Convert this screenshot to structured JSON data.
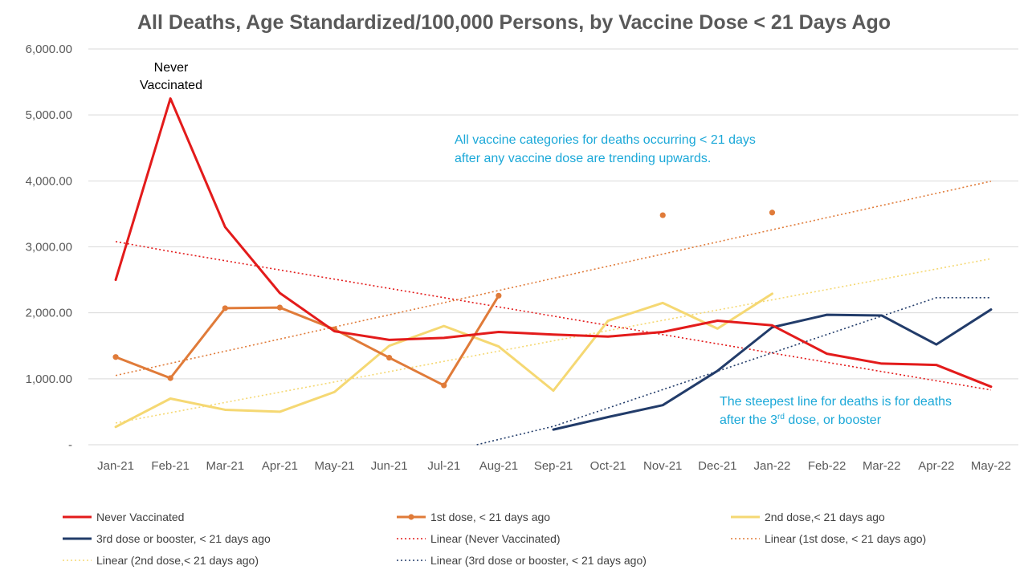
{
  "title": "All Deaths, Age Standardized/100,000 Persons, by Vaccine Dose < 21 Days Ago",
  "annotations": {
    "never_vax_line1": "Never",
    "never_vax_line2": "Vaccinated",
    "trend_line1": "All vaccine categories for deaths occurring < 21 days",
    "trend_line2": "after any vaccine dose are trending upwards.",
    "steep_line1": "The steepest line for deaths is for deaths",
    "steep_line2_pre": "after the 3",
    "steep_line2_sup": "rd",
    "steep_line2_post": " dose, or booster"
  },
  "colors": {
    "never": "#e31b1b",
    "dose1": "#e07b39",
    "dose2": "#f5d873",
    "dose3": "#223c6a",
    "annotation": "#1ba8d8",
    "grid": "#d9d9d9",
    "axis_text": "#595959"
  },
  "chart_data": {
    "type": "line",
    "title": "All Deaths, Age Standardized/100,000 Persons, by Vaccine Dose < 21 Days Ago",
    "xlabel": "",
    "ylabel": "",
    "categories": [
      "Jan-21",
      "Feb-21",
      "Mar-21",
      "Apr-21",
      "May-21",
      "Jun-21",
      "Jul-21",
      "Aug-21",
      "Sep-21",
      "Oct-21",
      "Nov-21",
      "Dec-21",
      "Jan-22",
      "Feb-22",
      "Mar-22",
      "Apr-22",
      "May-22"
    ],
    "ylim": [
      0,
      6000
    ],
    "yticks": [
      0,
      1000,
      2000,
      3000,
      4000,
      5000,
      6000
    ],
    "ytick_labels": [
      "-",
      "1,000.00",
      "2,000.00",
      "3,000.00",
      "4,000.00",
      "5,000.00",
      "6,000.00"
    ],
    "grid": true,
    "legend_position": "bottom",
    "series": [
      {
        "name": "Never Vaccinated",
        "color_key": "never",
        "style": "line",
        "values": [
          2500,
          5250,
          3300,
          2300,
          1720,
          1590,
          1620,
          1710,
          1670,
          1640,
          1710,
          1880,
          1810,
          1380,
          1230,
          1210,
          880
        ]
      },
      {
        "name": "1st dose, < 21 days ago",
        "color_key": "dose1",
        "style": "line-marker",
        "values": [
          1330,
          1010,
          2070,
          2080,
          1750,
          1320,
          900,
          2260,
          null,
          null,
          3480,
          null,
          3520,
          null,
          null,
          null,
          null
        ]
      },
      {
        "name": "2nd dose,< 21 days ago",
        "color_key": "dose2",
        "style": "line",
        "values": [
          270,
          700,
          530,
          500,
          800,
          1500,
          1800,
          1490,
          820,
          1880,
          2150,
          1760,
          2290,
          null,
          null,
          null,
          null
        ]
      },
      {
        "name": "3rd dose or booster, < 21 days ago",
        "color_key": "dose3",
        "style": "line",
        "values": [
          null,
          null,
          null,
          null,
          null,
          null,
          null,
          null,
          230,
          420,
          600,
          1120,
          1780,
          1970,
          1960,
          1520,
          2050
        ]
      },
      {
        "name": "Linear (Never Vaccinated)",
        "color_key": "never",
        "style": "dotted",
        "trend": [
          3080,
          2930,
          2790,
          2650,
          2510,
          2370,
          2230,
          2090,
          1950,
          1810,
          1670,
          1530,
          1390,
          1250,
          1110,
          970,
          830
        ]
      },
      {
        "name": "Linear (1st dose, < 21 days ago)",
        "color_key": "dose1",
        "style": "dotted",
        "trend": [
          1050,
          1234,
          1418,
          1602,
          1786,
          1970,
          2154,
          2338,
          2523,
          2707,
          2891,
          3075,
          3259,
          3443,
          3627,
          3811,
          3995
        ]
      },
      {
        "name": "Linear (2nd dose,< 21 days ago)",
        "color_key": "dose2",
        "style": "dotted",
        "trend": [
          330,
          486,
          641,
          797,
          952,
          1108,
          1264,
          1419,
          1575,
          1730,
          1886,
          2042,
          2197,
          2353,
          2508,
          2664,
          2820
        ]
      },
      {
        "name": "Linear (3rd dose or booster, < 21 days ago)",
        "color_key": "dose3",
        "style": "dotted",
        "trend": [
          null,
          null,
          null,
          null,
          null,
          null,
          null,
          0,
          279,
          557,
          836,
          1114,
          1393,
          1671,
          1950,
          2229,
          2229
        ]
      }
    ]
  },
  "legend": [
    {
      "label": "Never Vaccinated",
      "color_key": "never",
      "style": "line"
    },
    {
      "label": "1st dose, < 21 days ago",
      "color_key": "dose1",
      "style": "line-marker"
    },
    {
      "label": "2nd dose,< 21 days ago",
      "color_key": "dose2",
      "style": "line"
    },
    {
      "label": "3rd dose or booster, < 21 days ago",
      "color_key": "dose3",
      "style": "line"
    },
    {
      "label": "Linear (Never Vaccinated)",
      "color_key": "never",
      "style": "dotted"
    },
    {
      "label": "Linear (1st dose, < 21 days ago)",
      "color_key": "dose1",
      "style": "dotted"
    },
    {
      "label": "Linear (2nd dose,< 21 days ago)",
      "color_key": "dose2",
      "style": "dotted"
    },
    {
      "label": "Linear (3rd dose or booster, < 21 days ago)",
      "color_key": "dose3",
      "style": "dotted"
    }
  ]
}
